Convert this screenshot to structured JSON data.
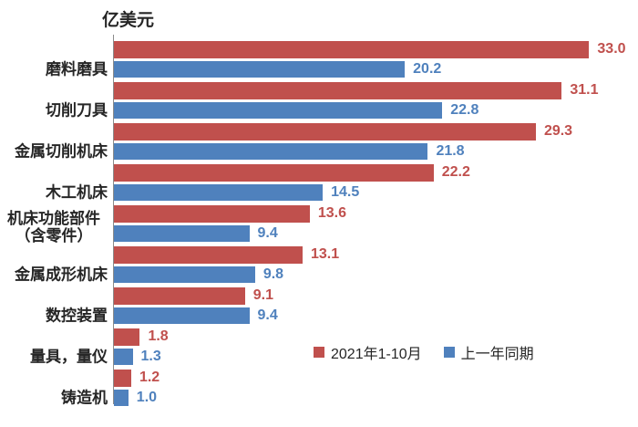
{
  "title": "亿美元",
  "legend": [
    {
      "label": "2021年1-10月"
    },
    {
      "label": "上一年同期"
    }
  ],
  "chart_data": {
    "type": "bar",
    "orientation": "horizontal",
    "title": "亿美元",
    "xlabel": "",
    "ylabel": "",
    "xlim": [
      0,
      35
    ],
    "grid": false,
    "legend_position": "inside-lower-right",
    "value_labels": true,
    "categories": [
      "磨料磨具",
      "切削刀具",
      "金属切削机床",
      "木工机床",
      "机床功能部件\n（含零件）",
      "金属成形机床",
      "数控装置",
      "量具，量仪",
      "铸造机"
    ],
    "series": [
      {
        "name": "2021年1-10月",
        "color": "#C0504D",
        "values": [
          33.0,
          31.1,
          29.3,
          22.2,
          13.6,
          13.1,
          9.1,
          1.8,
          1.2
        ]
      },
      {
        "name": "上一年同期",
        "color": "#4F81BD",
        "values": [
          20.2,
          22.8,
          21.8,
          14.5,
          9.4,
          9.8,
          9.4,
          1.3,
          1.0
        ]
      }
    ]
  }
}
